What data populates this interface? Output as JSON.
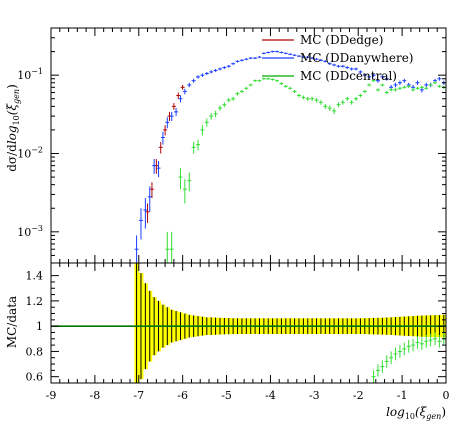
{
  "chart_data": [
    {
      "type": "scatter",
      "panel": "main",
      "ylabel_parts": [
        "dσ/d",
        "log",
        "10",
        "(ξ",
        "gen",
        ")"
      ],
      "yscale": "log",
      "xlim": [
        -9,
        0
      ],
      "ylim": [
        0.0004,
        0.4
      ],
      "yticks": [
        {
          "value": 0.001,
          "base": "10",
          "exp": "−3"
        },
        {
          "value": 0.01,
          "base": "10",
          "exp": "−2"
        },
        {
          "value": 0.1,
          "base": "10",
          "exp": "−1"
        }
      ],
      "legend": {
        "placement": "top-right",
        "entries": [
          {
            "label": "MC (DDedge)",
            "color": "#b00000"
          },
          {
            "label": "MC (DDanywhere)",
            "color": "#1a3cff"
          },
          {
            "label": "MC (DDcentral)",
            "color": "#00aa00"
          }
        ]
      },
      "series": [
        {
          "name": "MC (DDedge)",
          "color": "#b00000",
          "style": "points",
          "x": [
            -6.8,
            -6.7,
            -6.6,
            -6.5,
            -6.4,
            -6.3,
            -6.2,
            -6.1,
            -6.0
          ],
          "y": [
            0.0018,
            0.0035,
            0.007,
            0.012,
            0.02,
            0.03,
            0.04,
            0.055,
            0.07
          ],
          "err": [
            0.0005,
            0.0008,
            0.0015,
            0.002,
            0.003,
            0.004,
            0.004,
            0.005,
            0.005
          ]
        },
        {
          "name": "MC (DDanywhere)",
          "color": "#1a3cff",
          "style": "points",
          "x": [
            -7.05,
            -6.95,
            -6.85,
            -6.75,
            -6.65,
            -6.55,
            -6.45,
            -6.35,
            -6.25,
            -6.15,
            -6.05,
            -5.95,
            -5.85,
            -5.75,
            -5.65,
            -5.55,
            -5.45,
            -5.35,
            -5.25,
            -5.15,
            -5.05,
            -4.95,
            -4.85,
            -4.75,
            -4.65,
            -4.55,
            -4.45,
            -4.35,
            -4.25,
            -4.15,
            -4.05,
            -3.95,
            -3.85,
            -3.75,
            -3.65,
            -3.55,
            -3.45,
            -3.35,
            -3.25,
            -3.15,
            -3.05,
            -2.95,
            -2.85,
            -2.75,
            -2.65,
            -2.55,
            -2.45,
            -2.35,
            -2.25,
            -2.15,
            -2.05,
            -1.95,
            -1.85,
            -1.75,
            -1.65,
            -1.55,
            -1.45,
            -1.35,
            -1.25,
            -1.15,
            -1.05,
            -0.95,
            -0.85,
            -0.75,
            -0.65,
            -0.55,
            -0.45,
            -0.35,
            -0.25,
            -0.15,
            -0.05
          ],
          "y": [
            0.0006,
            0.0014,
            0.0019,
            0.0028,
            0.007,
            0.0065,
            0.016,
            0.025,
            0.03,
            0.034,
            0.05,
            0.062,
            0.075,
            0.085,
            0.095,
            0.1,
            0.105,
            0.11,
            0.115,
            0.12,
            0.125,
            0.13,
            0.14,
            0.15,
            0.155,
            0.16,
            0.165,
            0.165,
            0.17,
            0.19,
            0.195,
            0.2,
            0.2,
            0.195,
            0.19,
            0.185,
            0.18,
            0.175,
            0.17,
            0.17,
            0.165,
            0.16,
            0.155,
            0.15,
            0.14,
            0.135,
            0.13,
            0.13,
            0.125,
            0.12,
            0.12,
            0.11,
            0.1,
            0.095,
            0.1,
            0.085,
            0.095,
            0.09,
            0.07,
            0.075,
            0.08,
            0.085,
            0.075,
            0.07,
            0.08,
            0.065,
            0.075,
            0.075,
            0.085,
            0.09,
            0.08
          ],
          "err": [
            0.0003,
            0.0006,
            0.0008,
            0.001,
            0.0015,
            0.0015,
            0.003,
            0.004,
            0.004,
            0.004,
            0.005,
            0.005,
            0.005,
            0.005,
            0.005,
            0.005,
            0.005,
            0.005,
            0.005,
            0.005,
            0.005,
            0.005,
            0.005,
            0.005,
            0.005,
            0.005,
            0.005,
            0.005,
            0.005,
            0.005,
            0.005,
            0.005,
            0.005,
            0.005,
            0.005,
            0.005,
            0.005,
            0.005,
            0.005,
            0.005,
            0.005,
            0.005,
            0.005,
            0.005,
            0.005,
            0.005,
            0.005,
            0.005,
            0.005,
            0.005,
            0.005,
            0.005,
            0.005,
            0.005,
            0.005,
            0.005,
            0.005,
            0.005,
            0.005,
            0.005,
            0.005,
            0.005,
            0.005,
            0.005,
            0.005,
            0.005,
            0.005,
            0.005,
            0.005,
            0.005,
            0.005
          ]
        },
        {
          "name": "MC (DDcentral)",
          "color": "#33dd33",
          "style": "points",
          "x": [
            -6.35,
            -6.25,
            -6.05,
            -5.95,
            -5.85,
            -5.75,
            -5.65,
            -5.55,
            -5.45,
            -5.35,
            -5.25,
            -5.15,
            -5.05,
            -4.95,
            -4.85,
            -4.75,
            -4.65,
            -4.55,
            -4.45,
            -4.35,
            -4.25,
            -4.15,
            -4.05,
            -3.95,
            -3.85,
            -3.75,
            -3.65,
            -3.55,
            -3.45,
            -3.35,
            -3.25,
            -3.15,
            -3.05,
            -2.95,
            -2.85,
            -2.75,
            -2.65,
            -2.55,
            -2.45,
            -2.35,
            -2.25,
            -2.15,
            -2.05,
            -1.95,
            -1.85,
            -1.75,
            -1.65,
            -1.55,
            -1.45,
            -1.35,
            -1.25,
            -1.15,
            -1.05,
            -0.95,
            -0.85,
            -0.75,
            -0.65,
            -0.55,
            -0.45,
            -0.35,
            -0.25,
            -0.15,
            -0.05
          ],
          "y": [
            0.0006,
            0.0006,
            0.005,
            0.0035,
            0.0045,
            0.012,
            0.013,
            0.02,
            0.025,
            0.03,
            0.032,
            0.038,
            0.042,
            0.048,
            0.05,
            0.058,
            0.062,
            0.068,
            0.075,
            0.085,
            0.085,
            0.09,
            0.09,
            0.088,
            0.085,
            0.078,
            0.072,
            0.068,
            0.062,
            0.055,
            0.052,
            0.05,
            0.05,
            0.048,
            0.045,
            0.04,
            0.038,
            0.035,
            0.042,
            0.045,
            0.05,
            0.045,
            0.05,
            0.055,
            0.062,
            0.075,
            0.085,
            0.065,
            0.075,
            0.06,
            0.065,
            0.065,
            0.068,
            0.07,
            0.072,
            0.065,
            0.068,
            0.07,
            0.068,
            0.075,
            0.08,
            0.072,
            0.07
          ],
          "err": [
            0.0004,
            0.0004,
            0.0015,
            0.0012,
            0.0012,
            0.002,
            0.002,
            0.003,
            0.003,
            0.003,
            0.003,
            0.003,
            0.003,
            0.003,
            0.003,
            0.003,
            0.003,
            0.003,
            0.003,
            0.003,
            0.003,
            0.003,
            0.003,
            0.003,
            0.003,
            0.003,
            0.003,
            0.003,
            0.003,
            0.003,
            0.003,
            0.003,
            0.003,
            0.003,
            0.003,
            0.003,
            0.003,
            0.003,
            0.003,
            0.003,
            0.003,
            0.003,
            0.003,
            0.003,
            0.003,
            0.003,
            0.003,
            0.003,
            0.003,
            0.003,
            0.003,
            0.003,
            0.003,
            0.003,
            0.003,
            0.003,
            0.003,
            0.003,
            0.003,
            0.003,
            0.003,
            0.003,
            0.003
          ]
        }
      ]
    },
    {
      "type": "scatter",
      "panel": "ratio",
      "ylabel": "MC/data",
      "xlabel_parts": [
        "log",
        "10",
        "(ξ",
        "gen",
        ")"
      ],
      "xlim": [
        -9,
        0
      ],
      "ylim": [
        0.55,
        1.5
      ],
      "xticks": [
        {
          "value": -9,
          "label": "-9"
        },
        {
          "value": -8,
          "label": "-8"
        },
        {
          "value": -7,
          "label": "-7"
        },
        {
          "value": -6,
          "label": "-6"
        },
        {
          "value": -5,
          "label": "-5"
        },
        {
          "value": -4,
          "label": "-4"
        },
        {
          "value": -3,
          "label": "-3"
        },
        {
          "value": -2,
          "label": "-2"
        },
        {
          "value": -1,
          "label": "-1"
        },
        {
          "value": 0,
          "label": "0"
        }
      ],
      "yticks": [
        {
          "value": 0.6,
          "label": "0.6"
        },
        {
          "value": 0.8,
          "label": "0.8"
        },
        {
          "value": 1.0,
          "label": "1"
        },
        {
          "value": 1.2,
          "label": "1.2"
        },
        {
          "value": 1.4,
          "label": "1.4"
        }
      ],
      "reference_line": {
        "value": 1.0,
        "color": "#007700"
      },
      "uncertainty_band": {
        "color": "#ffff00",
        "x": [
          -7.05,
          -6.95,
          -6.85,
          -6.75,
          -6.65,
          -6.55,
          -6.45,
          -6.35,
          -6.25,
          -6.15,
          -6.05,
          -5.95,
          -5.85,
          -5.75,
          -5.65,
          -5.55,
          -5.45,
          -5.35,
          -5.25,
          -5.15,
          -5.05,
          -4.95,
          -4.85,
          -4.75,
          -4.65,
          -4.55,
          -4.45,
          -4.35,
          -4.25,
          -4.15,
          -4.05,
          -3.95,
          -3.85,
          -3.75,
          -3.65,
          -3.55,
          -3.45,
          -3.35,
          -3.25,
          -3.15,
          -3.05,
          -2.95,
          -2.85,
          -2.75,
          -2.65,
          -2.55,
          -2.45,
          -2.35,
          -2.25,
          -2.15,
          -2.05,
          -1.95,
          -1.85,
          -1.75,
          -1.65,
          -1.55,
          -1.45,
          -1.35,
          -1.25,
          -1.15,
          -1.05,
          -0.95,
          -0.85,
          -0.75,
          -0.65,
          -0.55,
          -0.45,
          -0.35,
          -0.25,
          -0.15,
          -0.05
        ],
        "half_width": [
          0.5,
          0.42,
          0.34,
          0.28,
          0.23,
          0.2,
          0.17,
          0.15,
          0.13,
          0.12,
          0.11,
          0.1,
          0.09,
          0.085,
          0.08,
          0.075,
          0.07,
          0.07,
          0.068,
          0.066,
          0.065,
          0.064,
          0.063,
          0.062,
          0.062,
          0.062,
          0.062,
          0.062,
          0.062,
          0.062,
          0.062,
          0.062,
          0.062,
          0.062,
          0.062,
          0.062,
          0.062,
          0.062,
          0.062,
          0.062,
          0.062,
          0.062,
          0.062,
          0.062,
          0.062,
          0.062,
          0.062,
          0.062,
          0.062,
          0.062,
          0.062,
          0.062,
          0.063,
          0.064,
          0.065,
          0.066,
          0.067,
          0.068,
          0.07,
          0.072,
          0.074,
          0.076,
          0.078,
          0.08,
          0.082,
          0.084,
          0.085,
          0.086,
          0.087,
          0.088,
          0.09
        ]
      },
      "series": [
        {
          "name": "MC (DDcentral)",
          "color": "#33dd33",
          "style": "points",
          "x": [
            -1.65,
            -1.55,
            -1.45,
            -1.35,
            -1.25,
            -1.15,
            -1.05,
            -0.95,
            -0.85,
            -0.75,
            -0.65,
            -0.55,
            -0.45,
            -0.35,
            -0.25,
            -0.15,
            -0.05
          ],
          "y": [
            0.6,
            0.65,
            0.68,
            0.72,
            0.75,
            0.78,
            0.8,
            0.82,
            0.84,
            0.85,
            0.87,
            0.86,
            0.88,
            0.89,
            0.9,
            0.88,
            0.9
          ],
          "err": [
            0.05,
            0.05,
            0.05,
            0.05,
            0.05,
            0.05,
            0.05,
            0.05,
            0.05,
            0.05,
            0.05,
            0.05,
            0.05,
            0.05,
            0.05,
            0.05,
            0.05
          ]
        }
      ]
    }
  ]
}
